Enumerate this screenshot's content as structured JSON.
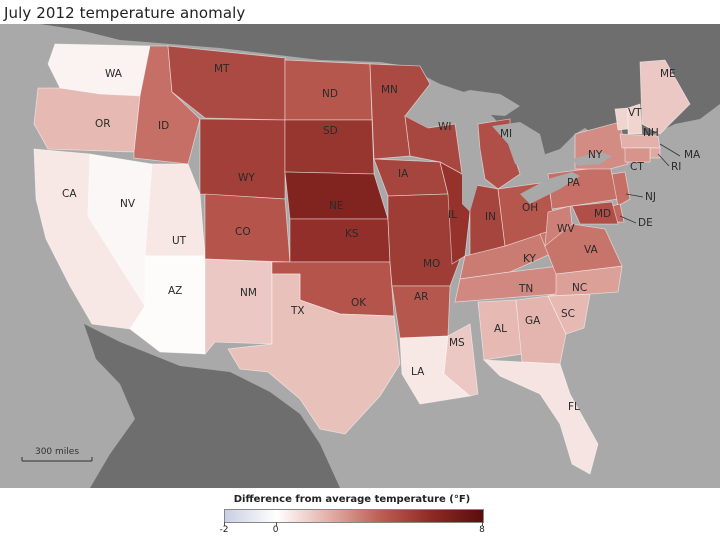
{
  "title": "July 2012 temperature anomaly",
  "scale_bar_label": "300 miles",
  "legend": {
    "title": "Difference from average temperature (°F)",
    "ticks": [
      {
        "label": "-2",
        "value": -2
      },
      {
        "label": "0",
        "value": 0
      },
      {
        "label": "8",
        "value": 8
      }
    ],
    "min": -2,
    "max": 8
  },
  "colors": {
    "ocean": "#a9a9a9",
    "land_outside": "#6e6e6e",
    "neg": "#c9cfe3",
    "zero": "#ffffff",
    "max": "#5a0d0d"
  },
  "states": [
    {
      "abbr": "WA",
      "anomaly": 0.3
    },
    {
      "abbr": "OR",
      "anomaly": 1.8
    },
    {
      "abbr": "CA",
      "anomaly": 0.6
    },
    {
      "abbr": "NV",
      "anomaly": 0.2
    },
    {
      "abbr": "ID",
      "anomaly": 3.6
    },
    {
      "abbr": "MT",
      "anomaly": 4.8
    },
    {
      "abbr": "WY",
      "anomaly": 5.2
    },
    {
      "abbr": "UT",
      "anomaly": 0.6
    },
    {
      "abbr": "AZ",
      "anomaly": 0.1
    },
    {
      "abbr": "CO",
      "anomaly": 4.4
    },
    {
      "abbr": "NM",
      "anomaly": 1.4
    },
    {
      "abbr": "ND",
      "anomaly": 4.3
    },
    {
      "abbr": "SD",
      "anomaly": 5.6
    },
    {
      "abbr": "NE",
      "anomaly": 6.5
    },
    {
      "abbr": "KS",
      "anomaly": 5.8
    },
    {
      "abbr": "OK",
      "anomaly": 4.4
    },
    {
      "abbr": "TX",
      "anomaly": 1.6
    },
    {
      "abbr": "MN",
      "anomaly": 4.8
    },
    {
      "abbr": "IA",
      "anomaly": 5.0
    },
    {
      "abbr": "MO",
      "anomaly": 5.3
    },
    {
      "abbr": "AR",
      "anomaly": 4.3
    },
    {
      "abbr": "LA",
      "anomaly": 0.6
    },
    {
      "abbr": "WI",
      "anomaly": 4.9
    },
    {
      "abbr": "IL",
      "anomaly": 5.7
    },
    {
      "abbr": "MS",
      "anomaly": 1.4
    },
    {
      "abbr": "MI",
      "anomaly": 4.6
    },
    {
      "abbr": "IN",
      "anomaly": 5.0
    },
    {
      "abbr": "KY",
      "anomaly": 3.3
    },
    {
      "abbr": "TN",
      "anomaly": 3.0
    },
    {
      "abbr": "AL",
      "anomaly": 1.8
    },
    {
      "abbr": "OH",
      "anomaly": 4.3
    },
    {
      "abbr": "GA",
      "anomaly": 1.9
    },
    {
      "abbr": "FL",
      "anomaly": 0.7
    },
    {
      "abbr": "SC",
      "anomaly": 1.8
    },
    {
      "abbr": "NC",
      "anomaly": 2.4
    },
    {
      "abbr": "VA",
      "anomaly": 3.5
    },
    {
      "abbr": "WV",
      "anomaly": 3.2
    },
    {
      "abbr": "PA",
      "anomaly": 3.6
    },
    {
      "abbr": "NY",
      "anomaly": 2.9
    },
    {
      "abbr": "VT",
      "anomaly": 1.1
    },
    {
      "abbr": "NH",
      "anomaly": 1.1
    },
    {
      "abbr": "ME",
      "anomaly": 1.4
    },
    {
      "abbr": "MA",
      "anomaly": 2.0
    },
    {
      "abbr": "RI",
      "anomaly": 2.2
    },
    {
      "abbr": "CT",
      "anomaly": 2.7
    },
    {
      "abbr": "NJ",
      "anomaly": 3.6
    },
    {
      "abbr": "DE",
      "anomaly": 3.8
    },
    {
      "abbr": "MD",
      "anomaly": 4.6
    }
  ]
}
